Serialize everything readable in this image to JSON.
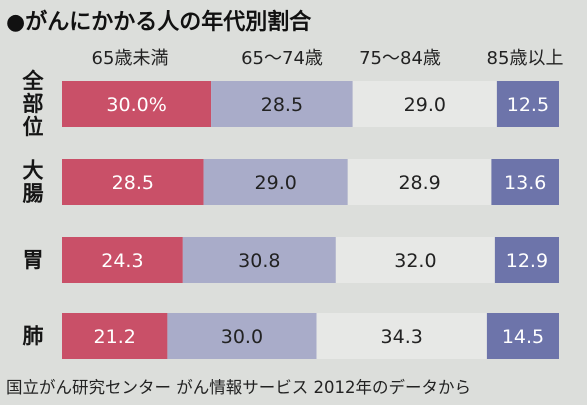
{
  "title": "●がんにかかる人の年代別割合",
  "source": "国立がん研究センター がん情報サービス 2012年のデータから",
  "chart_data": {
    "type": "bar",
    "orientation": "horizontal",
    "stacked": true,
    "categories": [
      "全部位",
      "大腸",
      "胃",
      "肺"
    ],
    "series": [
      {
        "name": "65歳未満",
        "values": [
          30.0,
          28.5,
          24.3,
          21.2
        ],
        "labels": [
          "30.0%",
          "28.5",
          "24.3",
          "21.2"
        ],
        "color": "#c95068"
      },
      {
        "name": "65～74歳",
        "values": [
          28.5,
          29.0,
          30.8,
          30.0
        ],
        "labels": [
          "28.5",
          "29.0",
          "30.8",
          "30.0"
        ],
        "color": "#a9acc9"
      },
      {
        "name": "75～84歳",
        "values": [
          29.0,
          28.9,
          32.0,
          34.3
        ],
        "labels": [
          "29.0",
          "28.9",
          "32.0",
          "34.3"
        ],
        "color": "#e7e8e6"
      },
      {
        "name": "85歳以上",
        "values": [
          12.5,
          13.6,
          12.9,
          14.5
        ],
        "labels": [
          "12.5",
          "13.6",
          "12.9",
          "14.5"
        ],
        "color": "#6d74aa"
      }
    ],
    "xlim": [
      0,
      100
    ],
    "grid": false,
    "legend": "top"
  }
}
